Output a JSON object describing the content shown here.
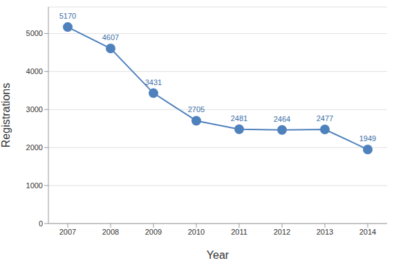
{
  "chart_data": {
    "type": "line",
    "x_label": "Year",
    "y_label": "Registrations",
    "categories": [
      "2007",
      "2008",
      "2009",
      "2010",
      "2011",
      "2012",
      "2013",
      "2014"
    ],
    "values": [
      5170,
      4607,
      3431,
      2705,
      2481,
      2464,
      2477,
      1949
    ],
    "color": "#4f81bd",
    "ylim": [
      0,
      5700
    ],
    "yticks": [
      0,
      1000,
      2000,
      3000,
      4000,
      5000
    ],
    "grid": true,
    "data_labels": true,
    "marker": "circle",
    "line_style": "solid"
  }
}
